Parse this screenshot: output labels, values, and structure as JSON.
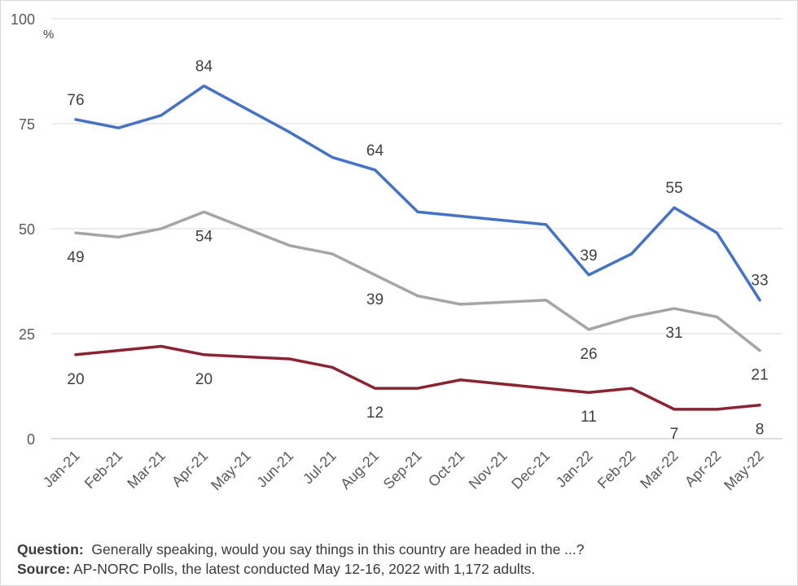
{
  "chart_data": {
    "type": "line",
    "unit": "%",
    "categories": [
      "Jan-21",
      "Feb-21",
      "Mar-21",
      "Apr-21",
      "May-21",
      "Jun-21",
      "Jul-21",
      "Aug-21",
      "Sep-21",
      "Oct-21",
      "Nov-21",
      "Dec-21",
      "Jan-22",
      "Feb-22",
      "Mar-22",
      "Apr-22",
      "May-22"
    ],
    "ylim": [
      0,
      100
    ],
    "yticks": [
      0,
      25,
      50,
      75,
      100
    ],
    "grid": true,
    "series": [
      {
        "color": "#4472c4",
        "values": [
          76,
          74,
          77,
          84,
          null,
          73,
          67,
          64,
          54,
          null,
          null,
          51,
          39,
          44,
          55,
          49,
          33
        ],
        "labels": {
          "0": "76",
          "3": "84",
          "7": "64",
          "12": "39",
          "14": "55",
          "16": "33"
        },
        "label_pos": "above"
      },
      {
        "color": "#a5a5a5",
        "values": [
          49,
          48,
          50,
          54,
          null,
          46,
          44,
          39,
          34,
          32,
          null,
          33,
          26,
          29,
          31,
          29,
          21
        ],
        "labels": {
          "0": "49",
          "3": "54",
          "7": "39",
          "12": "26",
          "14": "31",
          "16": "21"
        },
        "label_pos": "below"
      },
      {
        "color": "#8b2332",
        "values": [
          20,
          21,
          22,
          20,
          null,
          19,
          17,
          12,
          12,
          14,
          null,
          null,
          11,
          12,
          7,
          7,
          8
        ],
        "labels": {
          "0": "20",
          "3": "20",
          "7": "12",
          "12": "11",
          "14": "7",
          "16": "8"
        },
        "label_pos": "below"
      }
    ]
  },
  "footer": {
    "question_key": "Question:",
    "question_text": "  Generally speaking, would you say things in this country are headed in the ...?",
    "source_key": "Source:",
    "source_text": " AP-NORC Polls, the latest conducted May 12-16, 2022 with 1,172 adults."
  }
}
